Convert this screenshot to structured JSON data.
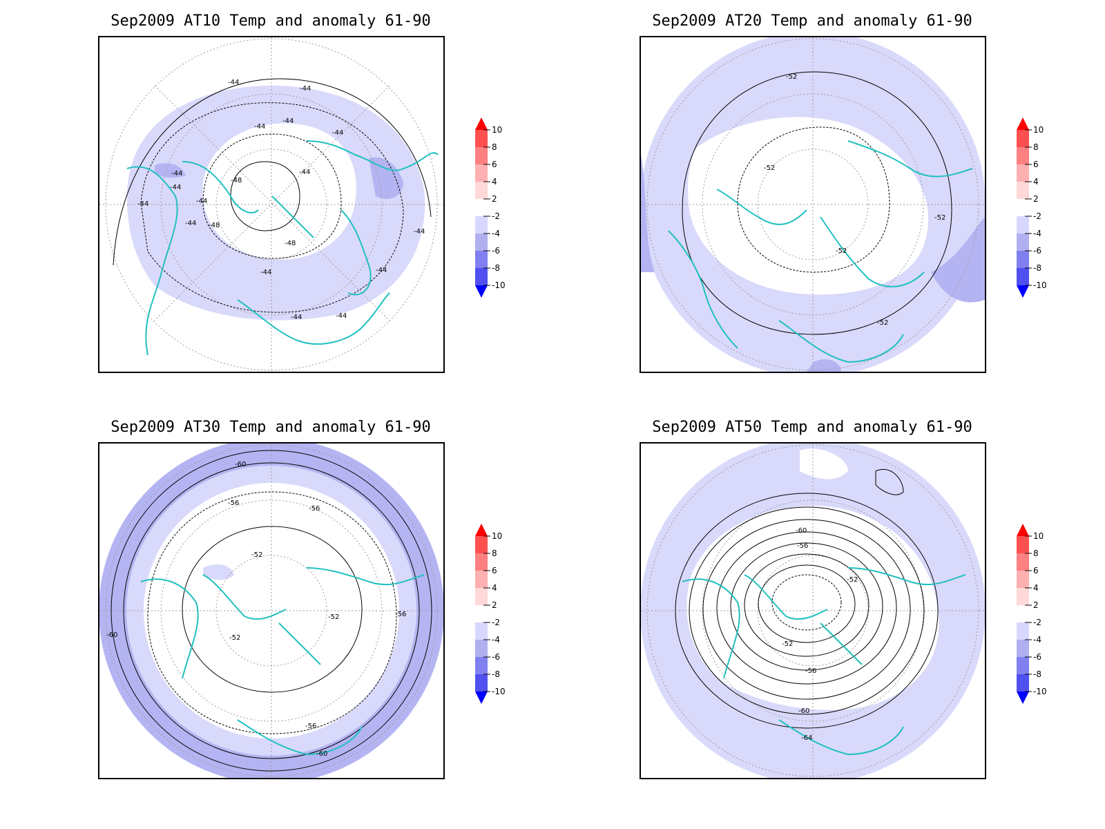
{
  "panels": [
    {
      "title": "Sep2009 AT10 Temp and anomaly 61-90",
      "contour_labels": [
        "-44",
        "-44",
        "-44",
        "-44",
        "-44",
        "-44",
        "-44",
        "-44",
        "-44",
        "-44",
        "-48",
        "-48",
        "-48",
        "-44",
        "-44",
        "-44",
        "-44",
        "-44",
        "-44"
      ]
    },
    {
      "title": "Sep2009 AT20 Temp and anomaly 61-90",
      "contour_labels": [
        "-52",
        "-52",
        "-52",
        "-52",
        "-52"
      ]
    },
    {
      "title": "Sep2009 AT30 Temp and anomaly 61-90",
      "contour_labels": [
        "-60",
        "-56",
        "-56",
        "-52",
        "-52",
        "-52",
        "-56",
        "-60",
        "-56",
        "-60"
      ]
    },
    {
      "title": "Sep2009 AT50 Temp and anomaly 61-90",
      "contour_labels": [
        "-60",
        "-56",
        "-52",
        "-52",
        "-56",
        "-60",
        "-64"
      ]
    }
  ],
  "colorbar": {
    "ticks": [
      "10",
      "8",
      "6",
      "4",
      "2",
      "-2",
      "-4",
      "-6",
      "-8",
      "-10"
    ],
    "colors": [
      "#ff0000",
      "#ff5050",
      "#ff8080",
      "#ffb0b0",
      "#ffd8d8",
      "#ffffff",
      "#d8d8ff",
      "#b0b0f0",
      "#8080f0",
      "#5050f0",
      "#0000ff"
    ]
  },
  "style": {
    "coast_color": "#20c0c0",
    "anomaly_light": "#d9d9fb",
    "anomaly_mid": "#b4b4f2",
    "anomaly_strong": "#8c8ce8"
  }
}
